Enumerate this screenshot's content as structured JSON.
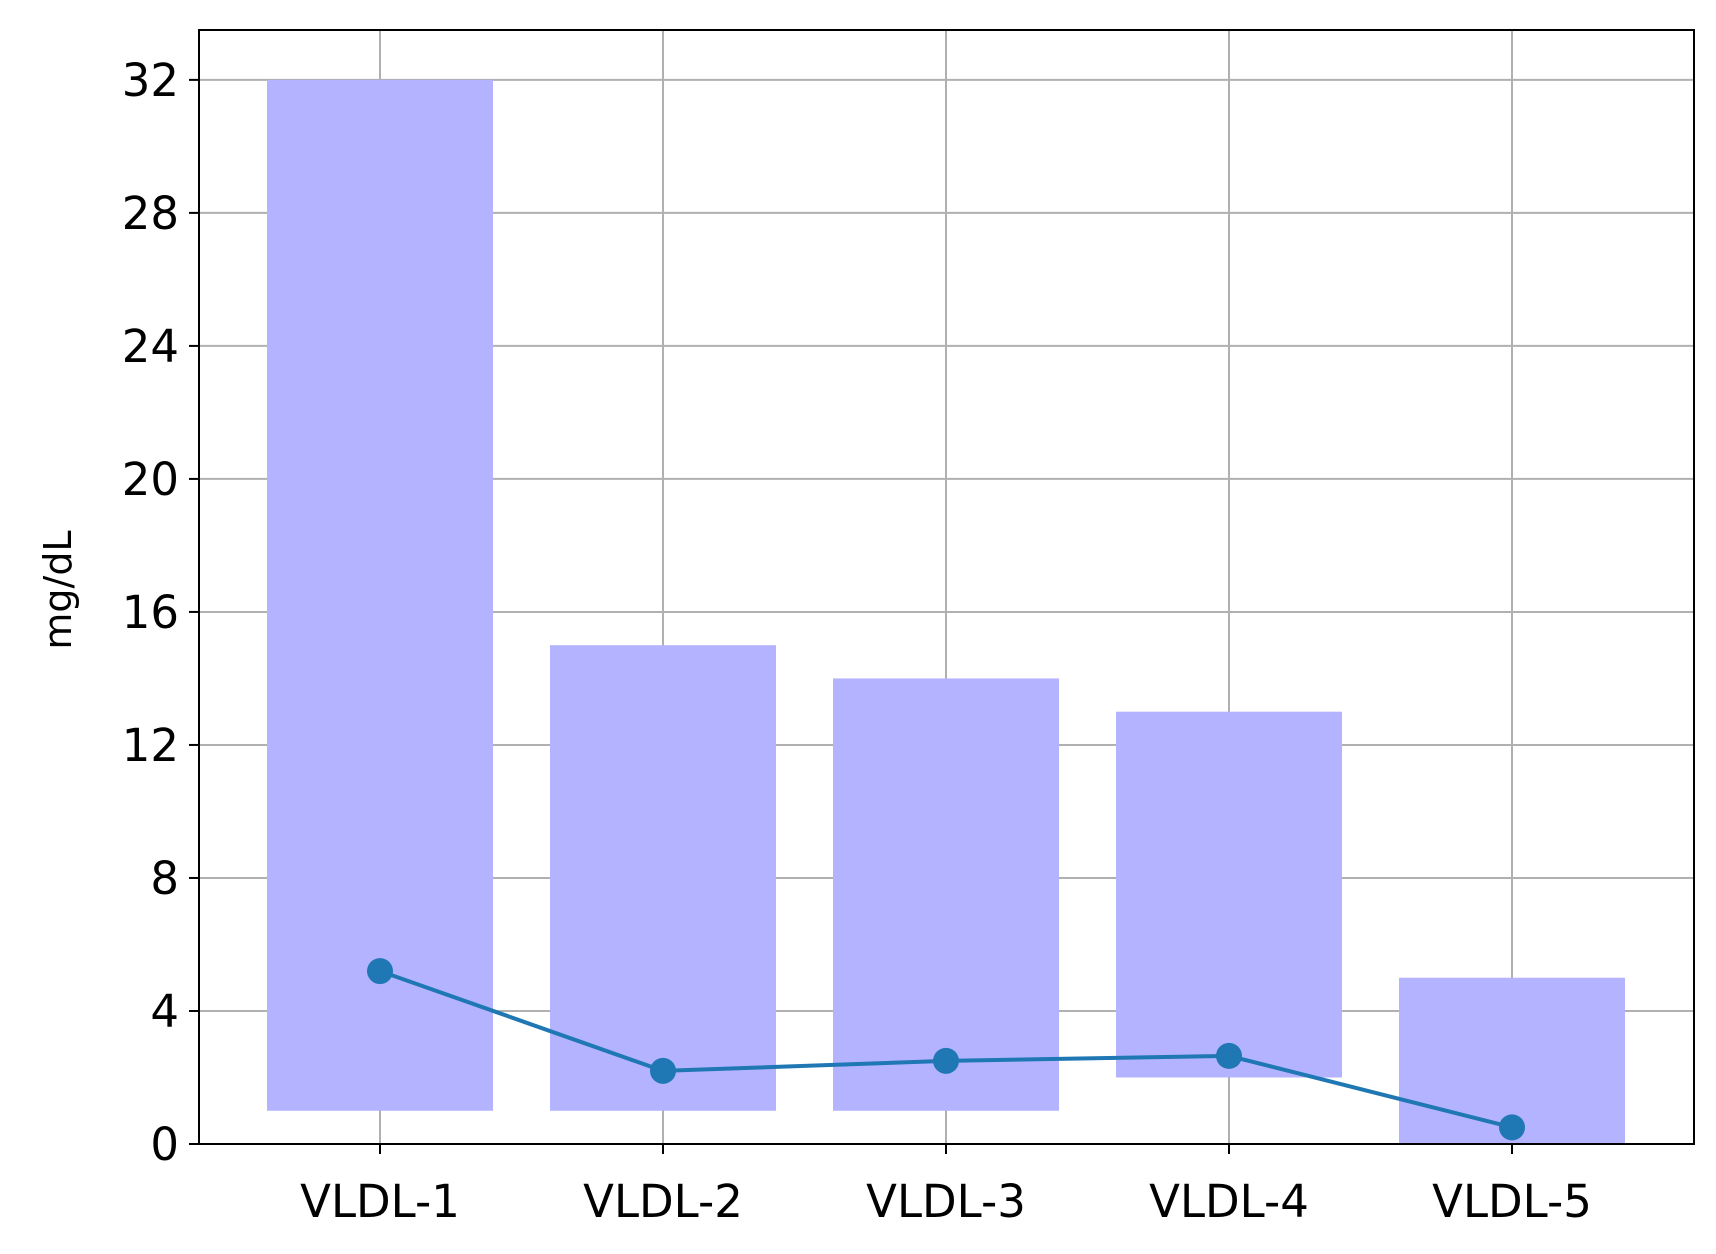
{
  "chart_data": {
    "type": "bar",
    "title": "",
    "xlabel": "",
    "ylabel": "mg/dL",
    "categories": [
      "VLDL-1",
      "VLDL-2",
      "VLDL-3",
      "VLDL-4",
      "VLDL-5"
    ],
    "ylim": [
      0,
      33.5
    ],
    "yticks": [
      0,
      4,
      8,
      12,
      16,
      20,
      24,
      28,
      32
    ],
    "grid": true,
    "legend": "none",
    "series": [
      {
        "type": "floating-bar",
        "low": [
          1,
          1,
          1,
          2,
          0
        ],
        "high": [
          32,
          15,
          14,
          13,
          5
        ],
        "color": "#b3b3ff"
      },
      {
        "type": "line",
        "markers": true,
        "values": [
          5.2,
          2.2,
          2.5,
          2.65,
          0.5
        ],
        "color": "#1f77b4"
      }
    ],
    "colors": {
      "grid": "#b0b0b0",
      "axis": "#000000"
    }
  }
}
